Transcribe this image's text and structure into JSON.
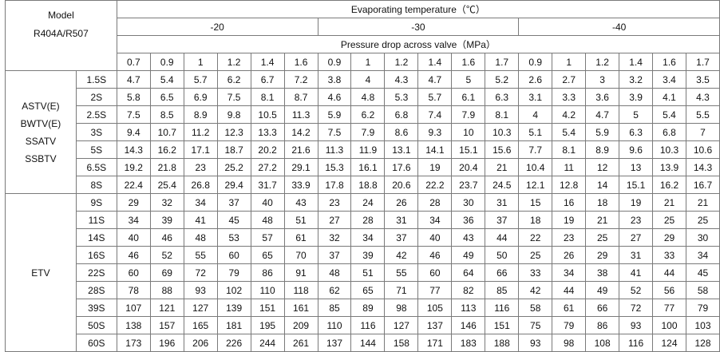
{
  "header": {
    "model_label": "Model",
    "refrigerant": "R404A/R507",
    "evaporating_temperature": "Evaporating temperature（℃）",
    "temperatures": [
      "-20",
      "-30",
      "-40"
    ],
    "pressure_drop": "Pressure drop across valve（MPa）",
    "pressures": [
      "0.7",
      "0.9",
      "1",
      "1.2",
      "1.4",
      "1.6",
      "0.9",
      "1",
      "1.2",
      "1.4",
      "1.6",
      "1.7",
      "0.9",
      "1",
      "1.2",
      "1.4",
      "1.6",
      "1.7"
    ]
  },
  "groups": [
    {
      "names": [
        "ASTV(E)",
        "BWTV(E)",
        "SSATV",
        "SSBTV"
      ],
      "rows": [
        {
          "size": "1.5S",
          "values": [
            "4.7",
            "5.4",
            "5.7",
            "6.2",
            "6.7",
            "7.2",
            "3.8",
            "4",
            "4.3",
            "4.7",
            "5",
            "5.2",
            "2.6",
            "2.7",
            "3",
            "3.2",
            "3.4",
            "3.5"
          ]
        },
        {
          "size": "2S",
          "values": [
            "5.8",
            "6.5",
            "6.9",
            "7.5",
            "8.1",
            "8.7",
            "4.6",
            "4.8",
            "5.3",
            "5.7",
            "6.1",
            "6.3",
            "3.1",
            "3.3",
            "3.6",
            "3.9",
            "4.1",
            "4.3"
          ]
        },
        {
          "size": "2.5S",
          "values": [
            "7.5",
            "8.5",
            "8.9",
            "9.8",
            "10.5",
            "11.3",
            "5.9",
            "6.2",
            "6.8",
            "7.4",
            "7.9",
            "8.1",
            "4",
            "4.2",
            "4.7",
            "5",
            "5.4",
            "5.5"
          ]
        },
        {
          "size": "3S",
          "values": [
            "9.4",
            "10.7",
            "11.2",
            "12.3",
            "13.3",
            "14.2",
            "7.5",
            "7.9",
            "8.6",
            "9.3",
            "10",
            "10.3",
            "5.1",
            "5.4",
            "5.9",
            "6.3",
            "6.8",
            "7"
          ]
        },
        {
          "size": "5S",
          "values": [
            "14.3",
            "16.2",
            "17.1",
            "18.7",
            "20.2",
            "21.6",
            "11.3",
            "11.9",
            "13.1",
            "14.1",
            "15.1",
            "15.6",
            "7.7",
            "8.1",
            "8.9",
            "9.6",
            "10.3",
            "10.6"
          ]
        },
        {
          "size": "6.5S",
          "values": [
            "19.2",
            "21.8",
            "23",
            "25.2",
            "27.2",
            "29.1",
            "15.3",
            "16.1",
            "17.6",
            "19",
            "20.4",
            "21",
            "10.4",
            "11",
            "12",
            "13",
            "13.9",
            "14.3"
          ]
        },
        {
          "size": "8S",
          "values": [
            "22.4",
            "25.4",
            "26.8",
            "29.4",
            "31.7",
            "33.9",
            "17.8",
            "18.8",
            "20.6",
            "22.2",
            "23.7",
            "24.5",
            "12.1",
            "12.8",
            "14",
            "15.1",
            "16.2",
            "16.7"
          ]
        }
      ]
    },
    {
      "names": [
        "ETV"
      ],
      "rows": [
        {
          "size": "9S",
          "values": [
            "29",
            "32",
            "34",
            "37",
            "40",
            "43",
            "23",
            "24",
            "26",
            "28",
            "30",
            "31",
            "15",
            "16",
            "18",
            "19",
            "21",
            "21"
          ]
        },
        {
          "size": "11S",
          "values": [
            "34",
            "39",
            "41",
            "45",
            "48",
            "51",
            "27",
            "28",
            "31",
            "34",
            "36",
            "37",
            "18",
            "19",
            "21",
            "23",
            "25",
            "25"
          ]
        },
        {
          "size": "14S",
          "values": [
            "40",
            "46",
            "48",
            "53",
            "57",
            "61",
            "32",
            "34",
            "37",
            "40",
            "43",
            "44",
            "22",
            "23",
            "25",
            "27",
            "29",
            "30"
          ]
        },
        {
          "size": "16S",
          "values": [
            "46",
            "52",
            "55",
            "60",
            "65",
            "70",
            "37",
            "39",
            "42",
            "46",
            "49",
            "50",
            "25",
            "26",
            "29",
            "31",
            "33",
            "34"
          ]
        },
        {
          "size": "22S",
          "values": [
            "60",
            "69",
            "72",
            "79",
            "86",
            "91",
            "48",
            "51",
            "55",
            "60",
            "64",
            "66",
            "33",
            "34",
            "38",
            "41",
            "44",
            "45"
          ]
        },
        {
          "size": "28S",
          "values": [
            "78",
            "88",
            "93",
            "102",
            "110",
            "118",
            "62",
            "65",
            "71",
            "77",
            "82",
            "85",
            "42",
            "44",
            "49",
            "52",
            "56",
            "58"
          ]
        },
        {
          "size": "39S",
          "values": [
            "107",
            "121",
            "127",
            "139",
            "151",
            "161",
            "85",
            "89",
            "98",
            "105",
            "113",
            "116",
            "58",
            "61",
            "66",
            "72",
            "77",
            "79"
          ]
        },
        {
          "size": "50S",
          "values": [
            "138",
            "157",
            "165",
            "181",
            "195",
            "209",
            "110",
            "116",
            "127",
            "137",
            "146",
            "151",
            "75",
            "79",
            "86",
            "93",
            "100",
            "103"
          ]
        },
        {
          "size": "60S",
          "values": [
            "173",
            "196",
            "206",
            "226",
            "244",
            "261",
            "137",
            "144",
            "158",
            "171",
            "183",
            "188",
            "93",
            "98",
            "108",
            "116",
            "124",
            "128"
          ]
        }
      ]
    }
  ]
}
